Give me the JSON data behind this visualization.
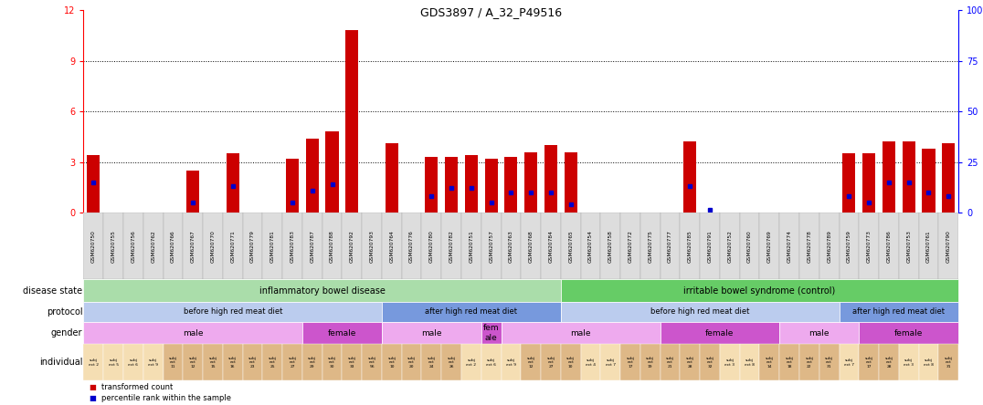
{
  "title": "GDS3897 / A_32_P49516",
  "samples": [
    "GSM620750",
    "GSM620755",
    "GSM620756",
    "GSM620762",
    "GSM620766",
    "GSM620767",
    "GSM620770",
    "GSM620771",
    "GSM620779",
    "GSM620781",
    "GSM620783",
    "GSM620787",
    "GSM620788",
    "GSM620792",
    "GSM620793",
    "GSM620764",
    "GSM620776",
    "GSM620780",
    "GSM620782",
    "GSM620751",
    "GSM620757",
    "GSM620763",
    "GSM620768",
    "GSM620784",
    "GSM620765",
    "GSM620754",
    "GSM620758",
    "GSM620772",
    "GSM620775",
    "GSM620777",
    "GSM620785",
    "GSM620791",
    "GSM620752",
    "GSM620760",
    "GSM620769",
    "GSM620774",
    "GSM620778",
    "GSM620789",
    "GSM620759",
    "GSM620773",
    "GSM620786",
    "GSM620753",
    "GSM620761",
    "GSM620790"
  ],
  "red_values": [
    3.4,
    0.0,
    0.0,
    0.0,
    0.0,
    2.5,
    0.0,
    3.5,
    0.0,
    0.0,
    3.2,
    4.4,
    4.8,
    10.8,
    0.0,
    4.1,
    0.0,
    3.3,
    3.3,
    3.4,
    3.2,
    3.3,
    3.6,
    4.0,
    3.6,
    0.0,
    0.0,
    0.0,
    0.0,
    0.0,
    4.2,
    0.0,
    0.0,
    0.0,
    0.0,
    0.0,
    0.0,
    0.0,
    3.5,
    3.5,
    4.2,
    4.2,
    3.8,
    4.1
  ],
  "blue_values_pct": [
    15.0,
    0.0,
    0.0,
    0.0,
    0.0,
    5.0,
    0.0,
    13.0,
    0.0,
    0.0,
    5.0,
    11.0,
    14.0,
    0.0,
    0.0,
    0.0,
    0.0,
    8.0,
    12.0,
    12.0,
    5.0,
    10.0,
    10.0,
    10.0,
    4.0,
    0.0,
    0.0,
    0.0,
    0.0,
    0.0,
    13.0,
    1.5,
    0.0,
    0.0,
    0.0,
    0.0,
    0.0,
    0.0,
    8.0,
    5.0,
    15.0,
    15.0,
    10.0,
    8.0
  ],
  "ylim_left": [
    0,
    12
  ],
  "ylim_right": [
    0,
    100
  ],
  "yticks_left": [
    0,
    3,
    6,
    9,
    12
  ],
  "yticks_right": [
    0,
    25,
    50,
    75,
    100
  ],
  "bar_color": "#cc0000",
  "dot_color": "#0000cc",
  "disease_state_bands": [
    {
      "label": "inflammatory bowel disease",
      "start": 0,
      "end": 24,
      "color": "#aaddaa"
    },
    {
      "label": "irritable bowel syndrome (control)",
      "start": 24,
      "end": 44,
      "color": "#66cc66"
    }
  ],
  "protocol_bands": [
    {
      "label": "before high red meat diet",
      "start": 0,
      "end": 15,
      "color": "#bbccee"
    },
    {
      "label": "after high red meat diet",
      "start": 15,
      "end": 24,
      "color": "#7799dd"
    },
    {
      "label": "before high red meat diet",
      "start": 24,
      "end": 38,
      "color": "#bbccee"
    },
    {
      "label": "after high red meat diet",
      "start": 38,
      "end": 44,
      "color": "#7799dd"
    }
  ],
  "gender_bands": [
    {
      "label": "male",
      "start": 0,
      "end": 11,
      "color": "#eeaaee"
    },
    {
      "label": "female",
      "start": 11,
      "end": 15,
      "color": "#cc55cc"
    },
    {
      "label": "male",
      "start": 15,
      "end": 20,
      "color": "#eeaaee"
    },
    {
      "label": "fem\nale",
      "start": 20,
      "end": 21,
      "color": "#cc55cc"
    },
    {
      "label": "male",
      "start": 21,
      "end": 29,
      "color": "#eeaaee"
    },
    {
      "label": "female",
      "start": 29,
      "end": 35,
      "color": "#cc55cc"
    },
    {
      "label": "male",
      "start": 35,
      "end": 39,
      "color": "#eeaaee"
    },
    {
      "label": "female",
      "start": 39,
      "end": 44,
      "color": "#cc55cc"
    }
  ],
  "individual_labels": [
    "subj\nect 2",
    "subj\nect 5",
    "subj\nect 6",
    "subj\nect 9",
    "subj\nect\n11",
    "subj\nect\n12",
    "subj\nect\n15",
    "subj\nect\n16",
    "subj\nect\n23",
    "subj\nect\n25",
    "subj\nect\n27",
    "subj\nect\n29",
    "subj\nect\n30",
    "subj\nect\n33",
    "subj\nect\n56",
    "subj\nect\n10",
    "subj\nect\n20",
    "subj\nect\n24",
    "subj\nect\n26",
    "subj\nect 2",
    "subj\nect 6",
    "subj\nect 9",
    "subj\nect\n12",
    "subj\nect\n27",
    "subj\nect\n10",
    "subj\nect 4",
    "subj\nect 7",
    "subj\nect\n17",
    "subj\nect\n19",
    "subj\nect\n21",
    "subj\nect\n28",
    "subj\nect\n32",
    "subj\nect 3",
    "subj\nect 8",
    "subj\nect\n14",
    "subj\nect\n18",
    "subj\nect\n22",
    "subj\nect\n31",
    "subj\nect 7",
    "subj\nect\n17",
    "subj\nect\n28",
    "subj\nect 3",
    "subj\nect 8",
    "subj\nect\n31"
  ],
  "individual_colors": [
    "#f5deb3",
    "#f5deb3",
    "#f5deb3",
    "#f5deb3",
    "#deb887",
    "#deb887",
    "#deb887",
    "#deb887",
    "#deb887",
    "#deb887",
    "#deb887",
    "#deb887",
    "#deb887",
    "#deb887",
    "#deb887",
    "#deb887",
    "#deb887",
    "#deb887",
    "#deb887",
    "#f5deb3",
    "#f5deb3",
    "#f5deb3",
    "#deb887",
    "#deb887",
    "#deb887",
    "#f5deb3",
    "#f5deb3",
    "#deb887",
    "#deb887",
    "#deb887",
    "#deb887",
    "#deb887",
    "#f5deb3",
    "#f5deb3",
    "#deb887",
    "#deb887",
    "#deb887",
    "#deb887",
    "#f5deb3",
    "#deb887",
    "#deb887",
    "#f5deb3",
    "#f5deb3",
    "#deb887"
  ],
  "row_labels": [
    "disease state",
    "protocol",
    "gender",
    "individual"
  ],
  "background_color": "#ffffff"
}
